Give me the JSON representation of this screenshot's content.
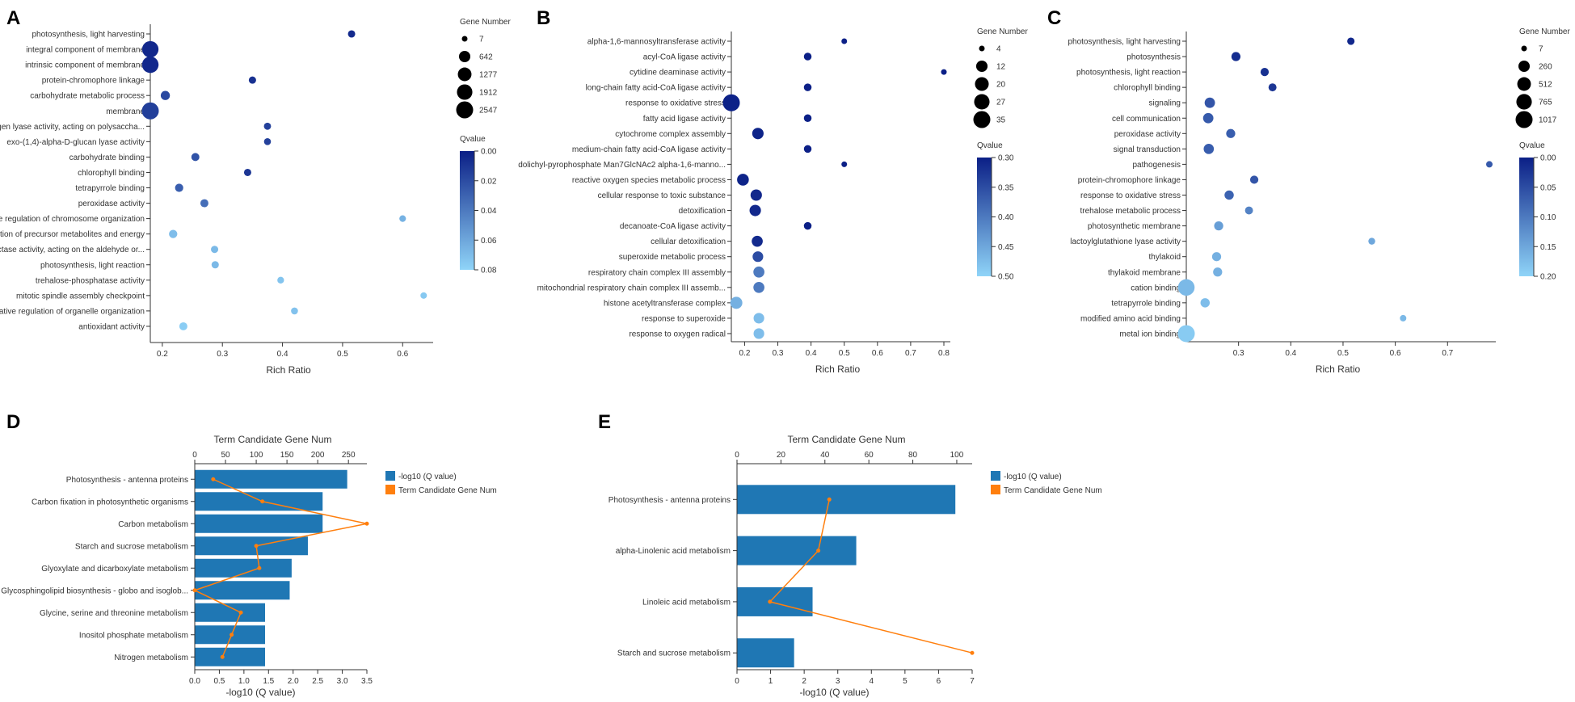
{
  "chart_data": [
    {
      "panel": "A",
      "type": "scatter",
      "x_title": "Rich Ratio",
      "xlim": [
        0.18,
        0.64
      ],
      "xticks": [
        0.2,
        0.3,
        0.4,
        0.5,
        0.6
      ],
      "xtick_labels": [
        "0.2",
        "0.3",
        "0.4",
        "0.5",
        "0.6"
      ],
      "size_title": "Gene Number",
      "size_min": 7,
      "size_max": 2547,
      "size_legend": [
        7,
        642,
        1277,
        1912,
        2547
      ],
      "size_legend_labels": [
        "7",
        "642",
        "1277",
        "1912",
        "2547"
      ],
      "color_title": "Qvalue",
      "qlim": [
        0,
        0.08
      ],
      "color_ticks": [
        0,
        0.02,
        0.04,
        0.06,
        0.08
      ],
      "color_tick_labels": [
        "0.00",
        "0.02",
        "0.04",
        "0.06",
        "0.08"
      ],
      "terms": [
        {
          "label": "photosynthesis, light harvesting",
          "x": 0.515,
          "genes": 60,
          "q": 0.005
        },
        {
          "label": "integral component of membrane",
          "x": 0.18,
          "genes": 2300,
          "q": 0.004
        },
        {
          "label": "intrinsic component of membrane",
          "x": 0.18,
          "genes": 2350,
          "q": 0.004
        },
        {
          "label": "protein-chromophore linkage",
          "x": 0.35,
          "genes": 60,
          "q": 0.008
        },
        {
          "label": "carbohydrate metabolic process",
          "x": 0.205,
          "genes": 250,
          "q": 0.018
        },
        {
          "label": "membrane",
          "x": 0.18,
          "genes": 2547,
          "q": 0.014
        },
        {
          "label": "carbon-oxygen lyase activity, acting on polysaccha...",
          "x": 0.375,
          "genes": 50,
          "q": 0.015
        },
        {
          "label": "exo-(1,4)-alpha-D-glucan lyase activity",
          "x": 0.375,
          "genes": 40,
          "q": 0.015
        },
        {
          "label": "carbohydrate binding",
          "x": 0.255,
          "genes": 120,
          "q": 0.023
        },
        {
          "label": "chlorophyll binding",
          "x": 0.342,
          "genes": 60,
          "q": 0.01
        },
        {
          "label": "tetrapyrrole binding",
          "x": 0.228,
          "genes": 140,
          "q": 0.028
        },
        {
          "label": "peroxidase activity",
          "x": 0.27,
          "genes": 120,
          "q": 0.035
        },
        {
          "label": "negative regulation of chromosome organization",
          "x": 0.6,
          "genes": 25,
          "q": 0.065
        },
        {
          "label": "generation of precursor metabolites and energy",
          "x": 0.218,
          "genes": 150,
          "q": 0.07
        },
        {
          "label": "oxidoreductase activity, acting on the aldehyde or...",
          "x": 0.287,
          "genes": 60,
          "q": 0.068
        },
        {
          "label": "photosynthesis, light reaction",
          "x": 0.288,
          "genes": 60,
          "q": 0.068
        },
        {
          "label": "trehalose-phosphatase activity",
          "x": 0.397,
          "genes": 30,
          "q": 0.073
        },
        {
          "label": "mitotic spindle assembly checkpoint",
          "x": 0.635,
          "genes": 20,
          "q": 0.075
        },
        {
          "label": "negative regulation of organelle organization",
          "x": 0.42,
          "genes": 40,
          "q": 0.072
        },
        {
          "label": "antioxidant activity",
          "x": 0.235,
          "genes": 120,
          "q": 0.077
        }
      ]
    },
    {
      "panel": "B",
      "type": "scatter",
      "x_title": "Rich Ratio",
      "xlim": [
        0.16,
        0.8
      ],
      "xticks": [
        0.2,
        0.3,
        0.4,
        0.5,
        0.6,
        0.7,
        0.8
      ],
      "xtick_labels": [
        "0.2",
        "0.3",
        "0.4",
        "0.5",
        "0.6",
        "0.7",
        "0.8"
      ],
      "size_title": "Gene Number",
      "size_min": 4,
      "size_max": 35,
      "size_legend": [
        4,
        12,
        20,
        27,
        35
      ],
      "size_legend_labels": [
        "4",
        "12",
        "20",
        "27",
        "35"
      ],
      "color_title": "Qvalue",
      "qlim": [
        0.3,
        0.5
      ],
      "color_ticks": [
        0.3,
        0.35,
        0.4,
        0.45,
        0.5
      ],
      "color_tick_labels": [
        "0.30",
        "0.35",
        "0.40",
        "0.45",
        "0.50"
      ],
      "terms": [
        {
          "label": "alpha-1,6-mannosyltransferase activity",
          "x": 0.5,
          "genes": 4,
          "q": 0.301
        },
        {
          "label": "acyl-CoA ligase activity",
          "x": 0.39,
          "genes": 5,
          "q": 0.301
        },
        {
          "label": "cytidine deaminase activity",
          "x": 0.8,
          "genes": 4,
          "q": 0.301
        },
        {
          "label": "long-chain fatty acid-CoA ligase activity",
          "x": 0.39,
          "genes": 5,
          "q": 0.301
        },
        {
          "label": "response to oxidative stress",
          "x": 0.16,
          "genes": 35,
          "q": 0.303
        },
        {
          "label": "fatty acid ligase activity",
          "x": 0.39,
          "genes": 5,
          "q": 0.301
        },
        {
          "label": "cytochrome complex assembly",
          "x": 0.24,
          "genes": 12,
          "q": 0.305
        },
        {
          "label": "medium-chain fatty acid-CoA ligase activity",
          "x": 0.39,
          "genes": 5,
          "q": 0.301
        },
        {
          "label": "dolichyl-pyrophosphate Man7GlcNAc2 alpha-1,6-manno...",
          "x": 0.5,
          "genes": 4,
          "q": 0.301
        },
        {
          "label": "reactive oxygen species metabolic process",
          "x": 0.195,
          "genes": 13,
          "q": 0.305
        },
        {
          "label": "cellular response to toxic substance",
          "x": 0.235,
          "genes": 12,
          "q": 0.31
        },
        {
          "label": "detoxification",
          "x": 0.232,
          "genes": 12,
          "q": 0.31
        },
        {
          "label": "decanoate-CoA ligase activity",
          "x": 0.39,
          "genes": 5,
          "q": 0.301
        },
        {
          "label": "cellular detoxification",
          "x": 0.238,
          "genes": 11,
          "q": 0.312
        },
        {
          "label": "superoxide metabolic process",
          "x": 0.24,
          "genes": 10,
          "q": 0.35
        },
        {
          "label": "respiratory chain complex III assembly",
          "x": 0.243,
          "genes": 11,
          "q": 0.4
        },
        {
          "label": "mitochondrial respiratory chain complex III assemb...",
          "x": 0.243,
          "genes": 11,
          "q": 0.4
        },
        {
          "label": "histone acetyltransferase complex",
          "x": 0.175,
          "genes": 14,
          "q": 0.46
        },
        {
          "label": "response to superoxide",
          "x": 0.243,
          "genes": 10,
          "q": 0.475
        },
        {
          "label": "response to oxygen radical",
          "x": 0.243,
          "genes": 10,
          "q": 0.475
        }
      ]
    },
    {
      "panel": "C",
      "type": "scatter",
      "x_title": "Rich Ratio",
      "xlim": [
        0.2,
        0.78
      ],
      "xticks": [
        0.3,
        0.4,
        0.5,
        0.6,
        0.7
      ],
      "xtick_labels": [
        "0.3",
        "0.4",
        "0.5",
        "0.6",
        "0.7"
      ],
      "size_title": "Gene Number",
      "size_min": 7,
      "size_max": 1017,
      "size_legend": [
        7,
        260,
        512,
        765,
        1017
      ],
      "size_legend_labels": [
        "7",
        "260",
        "512",
        "765",
        "1017"
      ],
      "color_title": "Qvalue",
      "qlim": [
        0,
        0.2
      ],
      "color_ticks": [
        0,
        0.05,
        0.1,
        0.15,
        0.2
      ],
      "color_tick_labels": [
        "0.00",
        "0.05",
        "0.10",
        "0.15",
        "0.20"
      ],
      "terms": [
        {
          "label": "photosynthesis, light harvesting",
          "x": 0.515,
          "genes": 30,
          "q": 0.01
        },
        {
          "label": "photosynthesis",
          "x": 0.295,
          "genes": 100,
          "q": 0.015
        },
        {
          "label": "photosynthesis, light reaction",
          "x": 0.35,
          "genes": 60,
          "q": 0.02
        },
        {
          "label": "chlorophyll binding",
          "x": 0.365,
          "genes": 50,
          "q": 0.025
        },
        {
          "label": "signaling",
          "x": 0.245,
          "genes": 180,
          "q": 0.06
        },
        {
          "label": "cell communication",
          "x": 0.242,
          "genes": 180,
          "q": 0.065
        },
        {
          "label": "peroxidase activity",
          "x": 0.285,
          "genes": 100,
          "q": 0.07
        },
        {
          "label": "signal transduction",
          "x": 0.243,
          "genes": 170,
          "q": 0.068
        },
        {
          "label": "pathogenesis",
          "x": 0.78,
          "genes": 12,
          "q": 0.065
        },
        {
          "label": "protein-chromophore linkage",
          "x": 0.33,
          "genes": 60,
          "q": 0.06
        },
        {
          "label": "response to oxidative stress",
          "x": 0.282,
          "genes": 110,
          "q": 0.075
        },
        {
          "label": "trehalose metabolic process",
          "x": 0.32,
          "genes": 50,
          "q": 0.11
        },
        {
          "label": "photosynthetic membrane",
          "x": 0.262,
          "genes": 100,
          "q": 0.14
        },
        {
          "label": "lactoylglutathione lyase activity",
          "x": 0.555,
          "genes": 18,
          "q": 0.15
        },
        {
          "label": "thylakoid",
          "x": 0.258,
          "genes": 100,
          "q": 0.16
        },
        {
          "label": "thylakoid membrane",
          "x": 0.26,
          "genes": 100,
          "q": 0.16
        },
        {
          "label": "cation binding",
          "x": 0.2,
          "genes": 950,
          "q": 0.17
        },
        {
          "label": "tetrapyrrole binding",
          "x": 0.236,
          "genes": 110,
          "q": 0.175
        },
        {
          "label": "modified amino acid binding",
          "x": 0.615,
          "genes": 12,
          "q": 0.17
        },
        {
          "label": "metal ion binding",
          "x": 0.2,
          "genes": 1017,
          "q": 0.19
        }
      ]
    },
    {
      "panel": "D",
      "type": "bar",
      "bottom_axis_title": "-log10  (Q value)",
      "top_axis_title": "Term Candidate Gene Num",
      "x_max": 3.5,
      "xticks": [
        0,
        0.5,
        1,
        1.5,
        2,
        2.5,
        3,
        3.5
      ],
      "xtick_labels": [
        "0.0",
        "0.5",
        "1.0",
        "1.5",
        "2.0",
        "2.5",
        "3.0",
        "3.5"
      ],
      "top_max": 280,
      "top_ticks": [
        0,
        50,
        100,
        150,
        200,
        250
      ],
      "top_tick_labels": [
        "0",
        "50",
        "100",
        "150",
        "200",
        "250"
      ],
      "legend": [
        "-log10  (Q value)",
        "Term Candidate Gene Num"
      ],
      "colors": {
        "bar": "#1f77b4",
        "line": "#ff7f0e"
      },
      "categories": [
        "Photosynthesis - antenna proteins",
        "Carbon fixation in photosynthetic organisms",
        "Carbon metabolism",
        "Starch and sucrose metabolism",
        "Glyoxylate and dicarboxylate metabolism",
        "Glycosphingolipid biosynthesis - globo and isoglob...",
        "Glycine, serine and threonine metabolism",
        "Inositol phosphate metabolism",
        "Nitrogen metabolism"
      ],
      "series": [
        {
          "name": "-log10  (Q value)",
          "values": [
            3.1,
            2.6,
            2.6,
            2.3,
            1.97,
            1.93,
            1.43,
            1.43,
            1.43
          ]
        },
        {
          "name": "Term Candidate Gene Num",
          "values": [
            30,
            110,
            280,
            100,
            105,
            0,
            75,
            60,
            45
          ]
        }
      ]
    },
    {
      "panel": "E",
      "type": "bar",
      "bottom_axis_title": "-log10  (Q value)",
      "top_axis_title": "Term Candidate Gene Num",
      "x_max": 7,
      "xticks": [
        0,
        1,
        2,
        3,
        4,
        5,
        6,
        7
      ],
      "xtick_labels": [
        "0",
        "1",
        "2",
        "3",
        "4",
        "5",
        "6",
        "7"
      ],
      "top_max": 107,
      "top_ticks": [
        0,
        20,
        40,
        60,
        80,
        100
      ],
      "top_tick_labels": [
        "0",
        "20",
        "40",
        "60",
        "80",
        "100"
      ],
      "legend": [
        "-log10  (Q value)",
        "Term Candidate Gene Num"
      ],
      "colors": {
        "bar": "#1f77b4",
        "line": "#ff7f0e"
      },
      "categories": [
        "Photosynthesis - antenna proteins",
        "alpha-Linolenic acid metabolism",
        "Linoleic acid metabolism",
        "Starch and sucrose metabolism"
      ],
      "series": [
        {
          "name": "-log10  (Q value)",
          "values": [
            6.5,
            3.55,
            2.25,
            1.7
          ]
        },
        {
          "name": "Term Candidate Gene Num",
          "values": [
            42,
            37,
            15,
            107
          ]
        }
      ]
    }
  ]
}
